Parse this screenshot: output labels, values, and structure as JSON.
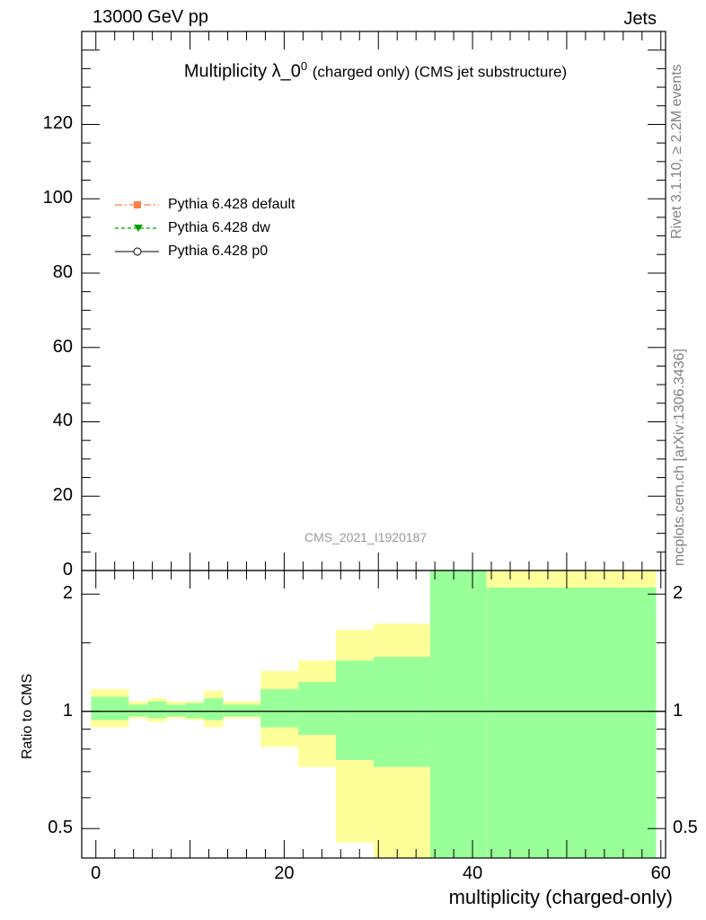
{
  "header": {
    "left": "13000 GeV pp",
    "right": "Jets"
  },
  "side_labels": {
    "top": "Rivet 3.1.10, ≥ 2.2M events",
    "bottom": "mcplots.cern.ch [arXiv:1306.3436]"
  },
  "watermark": "CMS_2021_I1920187",
  "colors": {
    "band_outer": "#ffff99",
    "band_inner": "#99ff99",
    "pythia_default": "#ff8040",
    "pythia_dw": "#00a000",
    "pythia_p0": "#333333"
  },
  "chart_data": [
    {
      "panel": "main",
      "type": "line",
      "title": "Multiplicity λ_0",
      "title_sup": "0",
      "subtitle": "(charged only) (CMS jet substructure)",
      "ylim": [
        0,
        145
      ],
      "yticks": [
        0,
        20,
        40,
        60,
        80,
        100,
        120
      ],
      "legend_position": "upper-left",
      "series": [
        {
          "name": "Pythia 6.428 default",
          "marker": "square",
          "dash": "dash-dot",
          "color": "#ff8040",
          "values": []
        },
        {
          "name": "Pythia 6.428 dw",
          "marker": "triangle-down",
          "dash": "dashed",
          "color": "#00a000",
          "values": []
        },
        {
          "name": "Pythia 6.428 p0",
          "marker": "open-circle",
          "dash": "solid",
          "color": "#333333",
          "values": []
        }
      ]
    },
    {
      "panel": "ratio",
      "type": "area",
      "ylabel": "Ratio to CMS",
      "xlabel": "multiplicity (charged-only)",
      "xlim": [
        -1.5,
        60.5
      ],
      "xticks": [
        0,
        20,
        40,
        60
      ],
      "ylim": [
        0.42,
        2.3
      ],
      "log_y": true,
      "yticks": [
        0.5,
        1,
        2
      ],
      "reference_line": 1,
      "bins": [
        {
          "lo": -0.5,
          "hi": 3.5,
          "inner": [
            0.95,
            1.09
          ],
          "outer": [
            0.91,
            1.14
          ]
        },
        {
          "lo": 3.5,
          "hi": 5.5,
          "inner": [
            0.97,
            1.04
          ],
          "outer": [
            0.96,
            1.06
          ]
        },
        {
          "lo": 5.5,
          "hi": 7.5,
          "inner": [
            0.96,
            1.06
          ],
          "outer": [
            0.94,
            1.08
          ]
        },
        {
          "lo": 7.5,
          "hi": 9.5,
          "inner": [
            0.97,
            1.04
          ],
          "outer": [
            0.96,
            1.06
          ]
        },
        {
          "lo": 9.5,
          "hi": 11.5,
          "inner": [
            0.96,
            1.05
          ],
          "outer": [
            0.95,
            1.06
          ]
        },
        {
          "lo": 11.5,
          "hi": 13.5,
          "inner": [
            0.95,
            1.08
          ],
          "outer": [
            0.91,
            1.13
          ]
        },
        {
          "lo": 13.5,
          "hi": 17.5,
          "inner": [
            0.97,
            1.04
          ],
          "outer": [
            0.96,
            1.06
          ]
        },
        {
          "lo": 17.5,
          "hi": 21.5,
          "inner": [
            0.91,
            1.14
          ],
          "outer": [
            0.81,
            1.27
          ]
        },
        {
          "lo": 21.5,
          "hi": 25.5,
          "inner": [
            0.87,
            1.19
          ],
          "outer": [
            0.72,
            1.35
          ]
        },
        {
          "lo": 25.5,
          "hi": 29.5,
          "inner": [
            0.75,
            1.35
          ],
          "outer": [
            0.46,
            1.62
          ]
        },
        {
          "lo": 29.5,
          "hi": 35.5,
          "inner": [
            0.72,
            1.38
          ],
          "outer": [
            0.42,
            1.68
          ]
        },
        {
          "lo": 35.5,
          "hi": 41.5,
          "inner": [
            0.42,
            2.3
          ],
          "outer": [
            0.42,
            2.3
          ]
        },
        {
          "lo": 41.5,
          "hi": 59.5,
          "inner": [
            0.42,
            2.08
          ],
          "outer": [
            0.42,
            2.3
          ]
        }
      ]
    }
  ]
}
